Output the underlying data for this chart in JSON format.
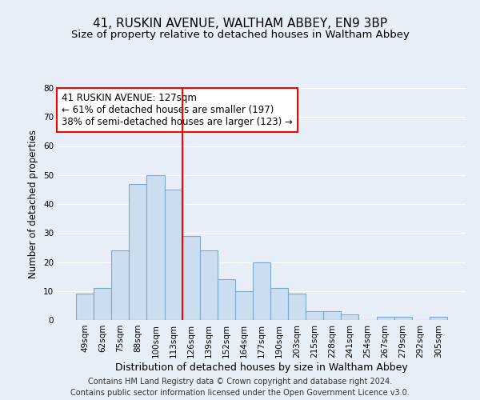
{
  "title1": "41, RUSKIN AVENUE, WALTHAM ABBEY, EN9 3BP",
  "title2": "Size of property relative to detached houses in Waltham Abbey",
  "xlabel": "Distribution of detached houses by size in Waltham Abbey",
  "ylabel": "Number of detached properties",
  "bins": [
    "49sqm",
    "62sqm",
    "75sqm",
    "88sqm",
    "100sqm",
    "113sqm",
    "126sqm",
    "139sqm",
    "152sqm",
    "164sqm",
    "177sqm",
    "190sqm",
    "203sqm",
    "215sqm",
    "228sqm",
    "241sqm",
    "254sqm",
    "267sqm",
    "279sqm",
    "292sqm",
    "305sqm"
  ],
  "values": [
    9,
    11,
    24,
    47,
    50,
    45,
    29,
    24,
    14,
    10,
    20,
    11,
    9,
    3,
    3,
    2,
    0,
    1,
    1,
    0,
    1
  ],
  "bar_color": "#ccddef",
  "bar_edge_color": "#7aaacc",
  "red_line_bin_idx": 6,
  "annotation_title": "41 RUSKIN AVENUE: 127sqm",
  "annotation_line1": "← 61% of detached houses are smaller (197)",
  "annotation_line2": "38% of semi-detached houses are larger (123) →",
  "footnote1": "Contains HM Land Registry data © Crown copyright and database right 2024.",
  "footnote2": "Contains public sector information licensed under the Open Government Licence v3.0.",
  "ylim": [
    0,
    80
  ],
  "bg_color": "#e8eef8",
  "plot_bg_color": "#e8eef8",
  "title1_fontsize": 11,
  "title2_fontsize": 9.5,
  "xlabel_fontsize": 9,
  "ylabel_fontsize": 8.5,
  "tick_fontsize": 7.5,
  "annot_fontsize": 8.5,
  "footnote_fontsize": 7
}
